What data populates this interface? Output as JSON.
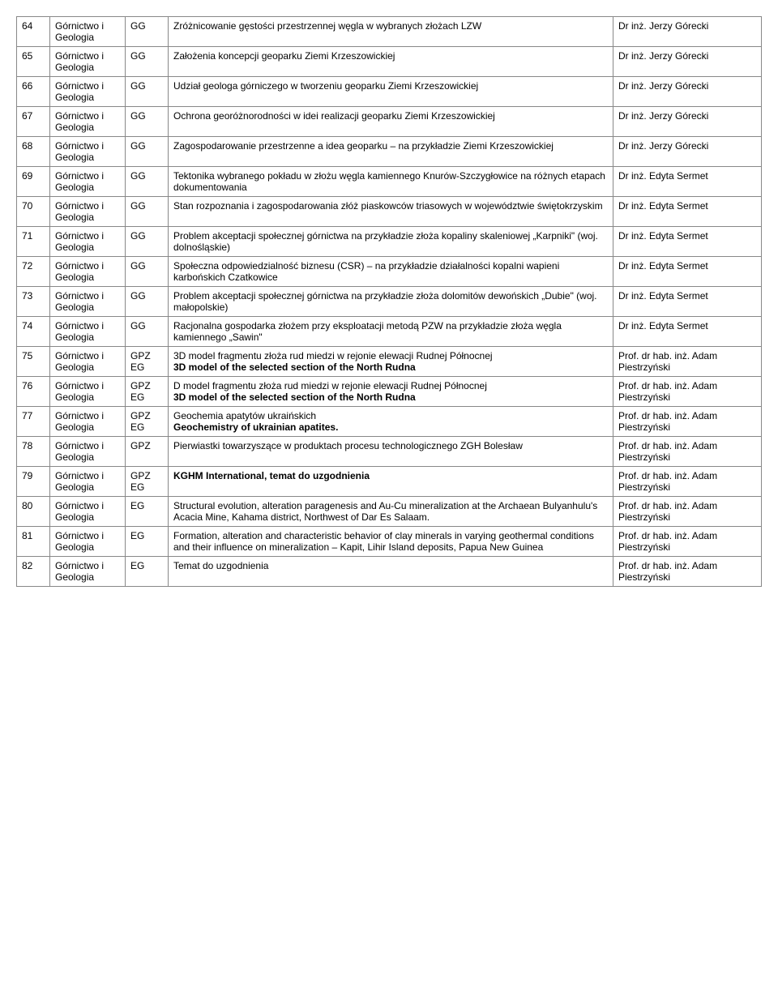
{
  "rows": [
    {
      "num": "64",
      "dept": "Górnictwo i Geologia",
      "code": "GG",
      "title_html": "Zróżnicowanie gęstości przestrzennej węgla w wybranych złożach LZW",
      "advisor": "Dr inż. Jerzy Górecki"
    },
    {
      "num": "65",
      "dept": "Górnictwo i Geologia",
      "code": "GG",
      "title_html": "Założenia koncepcji geoparku Ziemi Krzeszowickiej",
      "advisor": "Dr inż. Jerzy Górecki"
    },
    {
      "num": "66",
      "dept": "Górnictwo i Geologia",
      "code": "GG",
      "title_html": "Udział geologa górniczego w tworzeniu geoparku Ziemi Krzeszowickiej",
      "advisor": "Dr inż. Jerzy Górecki"
    },
    {
      "num": "67",
      "dept": "Górnictwo i Geologia",
      "code": "GG",
      "title_html": "Ochrona georóżnorodności w idei realizacji geoparku Ziemi Krzeszowickiej",
      "advisor": "Dr inż. Jerzy Górecki"
    },
    {
      "num": "68",
      "dept": "Górnictwo i Geologia",
      "code": "GG",
      "title_html": "Zagospodarowanie przestrzenne a idea geoparku – na przykładzie Ziemi Krzeszowickiej",
      "advisor": "Dr inż. Jerzy Górecki"
    },
    {
      "num": "69",
      "dept": "Górnictwo i Geologia",
      "code": "GG",
      "title_html": "Tektonika wybranego pokładu w złożu węgla kamiennego Knurów-Szczygłowice na różnych etapach dokumentowania",
      "advisor": "Dr inż. Edyta Sermet"
    },
    {
      "num": "70",
      "dept": "Górnictwo i Geologia",
      "code": "GG",
      "title_html": "Stan rozpoznania i zagospodarowania złóż piaskowców triasowych w województwie świętokrzyskim",
      "advisor": "Dr inż. Edyta Sermet"
    },
    {
      "num": "71",
      "dept": "Górnictwo i Geologia",
      "code": "GG",
      "title_html": "Problem akceptacji społecznej górnictwa na przykładzie złoża kopaliny skaleniowej „Karpniki\" (woj. dolnośląskie)",
      "advisor": "Dr inż. Edyta Sermet"
    },
    {
      "num": "72",
      "dept": "Górnictwo i Geologia",
      "code": "GG",
      "title_html": "Społeczna odpowiedzialność biznesu (CSR) – na przykładzie działalności kopalni wapieni karbońskich Czatkowice",
      "advisor": "Dr inż. Edyta Sermet"
    },
    {
      "num": "73",
      "dept": "Górnictwo i Geologia",
      "code": "GG",
      "title_html": "Problem akceptacji społecznej górnictwa na przykładzie złoża dolomitów dewońskich „Dubie\" (woj. małopolskie)",
      "advisor": "Dr inż. Edyta Sermet"
    },
    {
      "num": "74",
      "dept": "Górnictwo i Geologia",
      "code": "GG",
      "title_html": "Racjonalna gospodarka złożem przy eksploatacji metodą PZW na przykładzie złoża węgla kamiennego „Sawin\"",
      "advisor": "Dr inż. Edyta Sermet"
    },
    {
      "num": "75",
      "dept": "Górnictwo i Geologia",
      "code": "GPZ EG",
      "title_html": "3D model fragmentu złoża rud miedzi w rejonie elewacji Rudnej Północnej<br><span class=\"bold\">3D model of the selected section of the North Rudna</span>",
      "advisor": "Prof. dr hab. inż. Adam Piestrzyński"
    },
    {
      "num": "76",
      "dept": "Górnictwo i Geologia",
      "code": "GPZ EG",
      "title_html": "D model fragmentu złoża rud miedzi w rejonie elewacji Rudnej Północnej<br><span class=\"bold\">3D model of the selected section of the North Rudna</span>",
      "advisor": "Prof. dr hab. inż. Adam Piestrzyński"
    },
    {
      "num": "77",
      "dept": "Górnictwo i Geologia",
      "code": "GPZ EG",
      "title_html": "Geochemia apatytów ukraińskich<br><span class=\"bold\">Geochemistry of ukrainian apatites.</span>",
      "advisor": "Prof. dr hab. inż. Adam Piestrzyński"
    },
    {
      "num": "78",
      "dept": "Górnictwo i Geologia",
      "code": "GPZ",
      "title_html": "Pierwiastki towarzyszące w produktach procesu technologicznego ZGH Bolesław",
      "advisor": "Prof. dr hab. inż. Adam Piestrzyński"
    },
    {
      "num": "79",
      "dept": "Górnictwo i Geologia",
      "code": "GPZ EG",
      "title_html": "<span class=\"bold\">KGHM International, temat do uzgodnienia</span>",
      "advisor": "Prof. dr hab. inż. Adam Piestrzyński"
    },
    {
      "num": "80",
      "dept": "Górnictwo i Geologia",
      "code": "EG",
      "title_html": "Structural evolution, alteration paragenesis and Au-Cu mineralization at the Archaean Bulyanhulu's Acacia Mine, Kahama district, Northwest of Dar Es Salaam.",
      "advisor": "Prof. dr hab. inż. Adam Piestrzyński"
    },
    {
      "num": "81",
      "dept": "Górnictwo i Geologia",
      "code": "EG",
      "title_html": "Formation, alteration and characteristic behavior of clay minerals in varying geothermal conditions and their influence on mineralization – Kapit, Lihir Island deposits, Papua New Guinea",
      "advisor": "Prof. dr hab. inż. Adam Piestrzyński"
    },
    {
      "num": "82",
      "dept": "Górnictwo i Geologia",
      "code": "EG",
      "title_html": "Temat do uzgodnienia",
      "advisor": "Prof. dr hab. inż. Adam Piestrzyński"
    }
  ]
}
